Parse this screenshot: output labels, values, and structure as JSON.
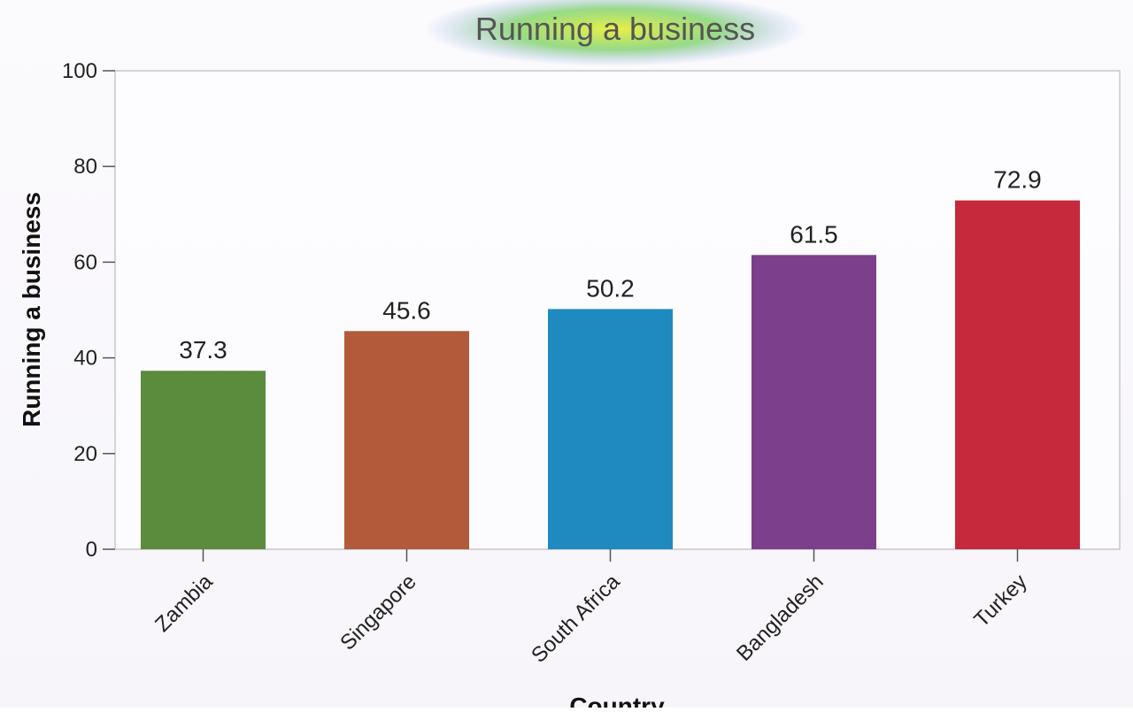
{
  "chart_data": {
    "type": "bar",
    "title": "Running a business",
    "xlabel": "Country",
    "ylabel": "Running a business",
    "categories": [
      "Zambia",
      "Singapore",
      "South Africa",
      "Bangladesh",
      "Turkey"
    ],
    "values": [
      37.3,
      45.6,
      50.2,
      61.5,
      72.9
    ],
    "colors": [
      "#5b8c3e",
      "#b35a3a",
      "#1f8ac0",
      "#7b3f8c",
      "#c42a3c"
    ],
    "ylim": [
      0,
      100
    ],
    "yticks": [
      0,
      20,
      40,
      60,
      80,
      100
    ],
    "grid": false,
    "legend": "none"
  }
}
